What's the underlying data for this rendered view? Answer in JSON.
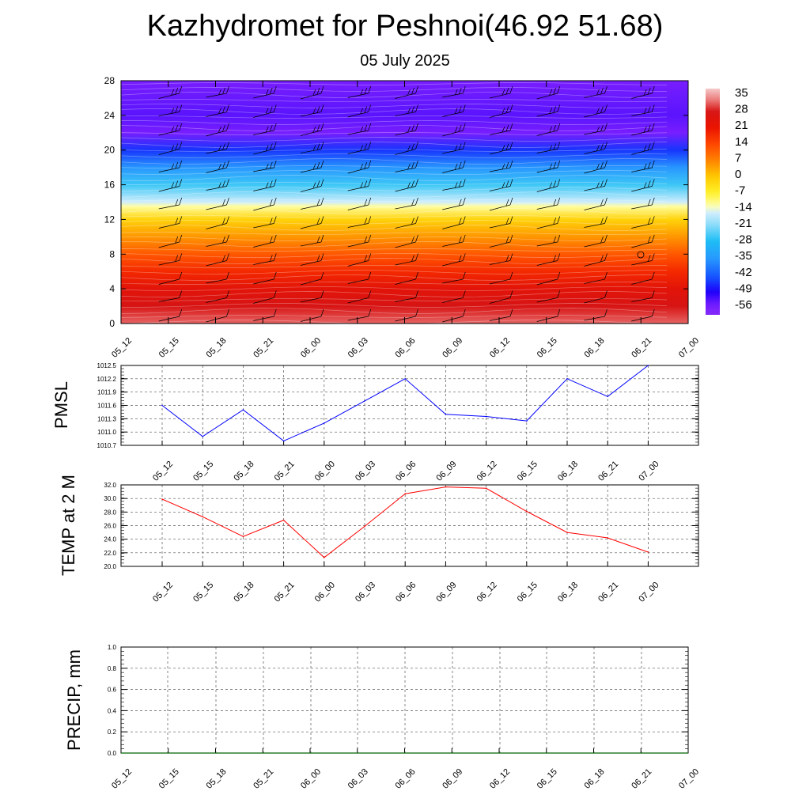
{
  "header": {
    "title": "Kazhydromet for Peshnoi(46.92 51.68)",
    "subtitle": "05 July 2025"
  },
  "chart_data": [
    {
      "id": "cross-section",
      "type": "heatmap",
      "title": "",
      "xlabel": "",
      "ylabel": "",
      "x_ticks": [
        "05_12",
        "05_15",
        "05_18",
        "05_21",
        "06_00",
        "06_03",
        "06_06",
        "06_09",
        "06_12",
        "06_15",
        "06_18",
        "06_21",
        "07_00"
      ],
      "y_ticks": [
        0,
        4,
        8,
        12,
        16,
        20,
        24,
        28
      ],
      "ylim": [
        0,
        28
      ],
      "colorbar": {
        "labels": [
          "35",
          "28",
          "21",
          "14",
          "7",
          "0",
          "-7",
          "-14",
          "-21",
          "-28",
          "-35",
          "-42",
          "-49",
          "-56"
        ],
        "min": -60,
        "max": 38
      },
      "temperature_profile": [
        {
          "level": 0,
          "value": 32
        },
        {
          "level": 2,
          "value": 28
        },
        {
          "level": 4,
          "value": 24
        },
        {
          "level": 6,
          "value": 18
        },
        {
          "level": 8,
          "value": 12
        },
        {
          "level": 10,
          "value": 5
        },
        {
          "level": 12,
          "value": -2
        },
        {
          "level": 13.5,
          "value": -12
        },
        {
          "level": 14,
          "value": -16
        },
        {
          "level": 16,
          "value": -26
        },
        {
          "level": 18,
          "value": -36
        },
        {
          "level": 20,
          "value": -46
        },
        {
          "level": 22,
          "value": -56
        },
        {
          "level": 24,
          "value": -54
        },
        {
          "level": 26,
          "value": -55
        },
        {
          "level": 28,
          "value": -56
        }
      ],
      "wind_barbs": true,
      "grid": false,
      "legend": "right"
    },
    {
      "id": "pmsl",
      "type": "line",
      "ylabel": "PMSL",
      "x": [
        "05_12",
        "05_15",
        "05_18",
        "05_21",
        "06_00",
        "06_03",
        "06_06",
        "06_09",
        "06_12",
        "06_15",
        "06_18",
        "06_21",
        "07_00"
      ],
      "y_ticks": [
        "1010.7",
        "1011.0",
        "1011.3",
        "1011.6",
        "1011.9",
        "1012.2",
        "1012.5"
      ],
      "ylim": [
        1010.7,
        1012.5
      ],
      "series": [
        {
          "values": [
            1011.6,
            1010.9,
            1011.5,
            1010.8,
            1011.2,
            1011.7,
            1012.2,
            1011.4,
            1011.35,
            1011.25,
            1012.2,
            1011.8,
            1012.5
          ],
          "color": "#0000ff"
        }
      ],
      "grid": true
    },
    {
      "id": "temp2m",
      "type": "line",
      "ylabel": "TEMP at 2 M",
      "x": [
        "05_12",
        "05_15",
        "05_18",
        "05_21",
        "06_00",
        "06_03",
        "06_06",
        "06_09",
        "06_12",
        "06_15",
        "06_18",
        "06_21",
        "07_00"
      ],
      "y_ticks": [
        "20.0",
        "22.0",
        "24.0",
        "26.0",
        "28.0",
        "30.0",
        "32.0"
      ],
      "ylim": [
        20,
        32
      ],
      "series": [
        {
          "values": [
            29.9,
            27.3,
            24.4,
            26.8,
            21.3,
            25.9,
            30.7,
            31.7,
            31.5,
            28.1,
            25.0,
            24.2,
            22.1
          ],
          "color": "#ff0000"
        }
      ],
      "grid": true
    },
    {
      "id": "precip",
      "type": "line",
      "ylabel": "PRECIP, mm",
      "x_ticks": [
        "05_12",
        "05_15",
        "05_18",
        "05_21",
        "06_00",
        "06_03",
        "06_06",
        "06_09",
        "06_12",
        "06_15",
        "06_18",
        "06_21",
        "07_00"
      ],
      "y_ticks": [
        "0.0",
        "0.2",
        "0.4",
        "0.6",
        "0.8",
        "1.0"
      ],
      "ylim": [
        0,
        1
      ],
      "series": [
        {
          "values": [
            0,
            0,
            0,
            0,
            0,
            0,
            0,
            0,
            0,
            0,
            0,
            0,
            0
          ],
          "color": "#006400"
        }
      ],
      "grid": true
    }
  ]
}
